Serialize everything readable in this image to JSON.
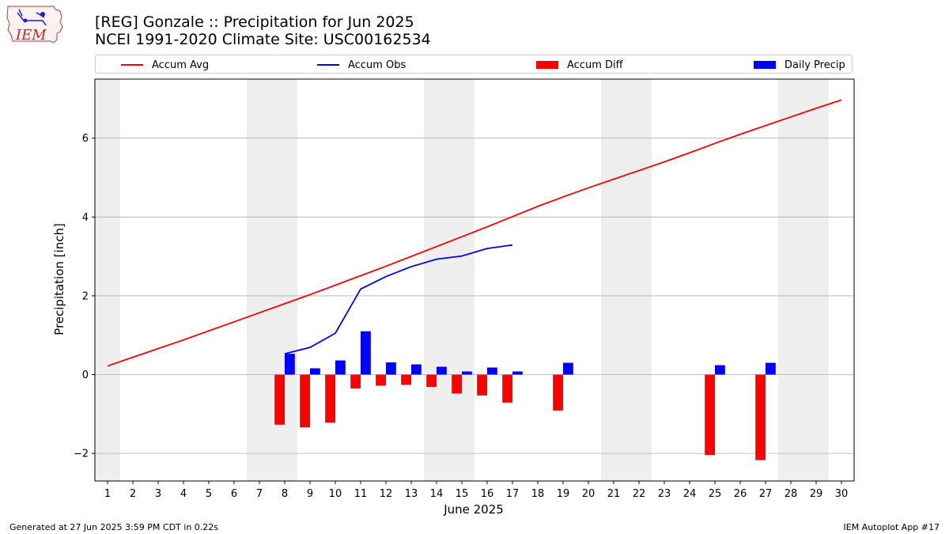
{
  "title_line1": "[REG] Gonzale :: Precipitation for Jun 2025",
  "title_line2": "NCEI 1991-2020 Climate Site: USC00162534",
  "logo_text": "IEM",
  "footer_left": "Generated at 27 Jun 2025 3:59 PM CDT in 0.22s",
  "footer_right": "IEM Autoplot App #17",
  "colors": {
    "avg": "#ff0000",
    "obs": "#0000ff",
    "diff": "#ff0000",
    "daily": "#0000ff",
    "weekend": "#eeeeee",
    "grid": "#b0b0b0"
  },
  "chart_data": {
    "type": "bar",
    "xlabel": "June 2025",
    "ylabel": "Precipitation [inch]",
    "xlim": [
      0.5,
      30.5
    ],
    "ylim": [
      -2.7,
      7.5
    ],
    "yticks": [
      -2,
      0,
      2,
      4,
      6
    ],
    "ytick_labels": [
      "−2",
      "0",
      "2",
      "4",
      "6"
    ],
    "xticks": [
      1,
      2,
      3,
      4,
      5,
      6,
      7,
      8,
      9,
      10,
      11,
      12,
      13,
      14,
      15,
      16,
      17,
      18,
      19,
      20,
      21,
      22,
      23,
      24,
      25,
      26,
      27,
      28,
      29,
      30
    ],
    "grid": "horizontal",
    "legend_placement": "top",
    "weekends": [
      [
        0.5,
        1.5
      ],
      [
        6.5,
        8.5
      ],
      [
        13.5,
        15.5
      ],
      [
        20.5,
        22.5
      ],
      [
        27.5,
        29.5
      ]
    ],
    "series": [
      {
        "name": "Accum Avg",
        "kind": "line",
        "x": [
          1,
          2,
          3,
          4,
          5,
          6,
          7,
          8,
          9,
          10,
          11,
          12,
          13,
          14,
          15,
          16,
          17,
          18,
          19,
          20,
          21,
          22,
          23,
          24,
          25,
          26,
          27,
          28,
          29,
          30
        ],
        "values": [
          0.22,
          0.44,
          0.66,
          0.88,
          1.11,
          1.34,
          1.57,
          1.8,
          2.03,
          2.27,
          2.51,
          2.75,
          3.0,
          3.25,
          3.5,
          3.75,
          4.01,
          4.27,
          4.51,
          4.74,
          4.96,
          5.18,
          5.4,
          5.63,
          5.87,
          6.1,
          6.32,
          6.54,
          6.76,
          6.97
        ]
      },
      {
        "name": "Accum Obs",
        "kind": "line",
        "x": [
          8,
          9,
          10,
          11,
          12,
          13,
          14,
          15,
          16,
          17
        ],
        "values": [
          0.53,
          0.69,
          1.05,
          2.17,
          2.49,
          2.74,
          2.93,
          3.01,
          3.2,
          3.29
        ]
      },
      {
        "name": "Accum Diff",
        "kind": "bar",
        "x": [
          8,
          9,
          10,
          11,
          12,
          13,
          14,
          15,
          16,
          17,
          19,
          25,
          27
        ],
        "values": [
          -1.27,
          -1.34,
          -1.22,
          -0.35,
          -0.28,
          -0.26,
          -0.31,
          -0.48,
          -0.53,
          -0.71,
          -0.91,
          -2.04,
          -2.17
        ]
      },
      {
        "name": "Daily Precip",
        "kind": "bar",
        "x": [
          8,
          9,
          10,
          11,
          12,
          13,
          14,
          15,
          16,
          17,
          19,
          25,
          27
        ],
        "values": [
          0.53,
          0.16,
          0.36,
          1.1,
          0.31,
          0.26,
          0.2,
          0.08,
          0.18,
          0.08,
          0.3,
          0.24,
          0.3
        ]
      }
    ]
  }
}
